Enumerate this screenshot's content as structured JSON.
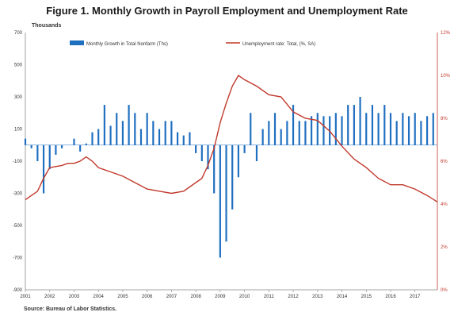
{
  "page": {
    "title": "Figure 1. Monthly Growth in Payroll Employment and Unemployment Rate",
    "y_unit": "Thousands",
    "source": "Source: Bureau of Labor Statistics."
  },
  "chart_data": {
    "type": "bar+line",
    "title": "Figure 1. Monthly Growth in Payroll Employment and Unemployment Rate",
    "colors": {
      "bars": "#1f6fc0",
      "line": "#c0392b"
    },
    "x_range": [
      2001,
      2017.92
    ],
    "x_ticks": [
      "2001",
      "2002",
      "2003",
      "2004",
      "2005",
      "2006",
      "2007",
      "2008",
      "2009",
      "2010",
      "2011",
      "2012",
      "2013",
      "2014",
      "2015",
      "2016",
      "2017"
    ],
    "y_left": {
      "label": "Thousands",
      "range": [
        -900,
        700
      ],
      "ticks": [
        "700",
        "500",
        "300",
        "100",
        "-100",
        "-300",
        "-500",
        "-700",
        "-900"
      ]
    },
    "y_right": {
      "range": [
        0,
        12
      ],
      "ticks": [
        "12%",
        "10%",
        "8%",
        "6%",
        "4%",
        "2%",
        "0%"
      ]
    },
    "legend": {
      "placement": "top",
      "entries": [
        "Monthly Growth in Total Nonfarm (Ths)",
        "Unemployment rate: Total, (%, SA)"
      ]
    },
    "series": [
      {
        "name": "Monthly Growth in Total Nonfarm (Ths)",
        "kind": "bar",
        "points": [
          [
            2001.0,
            40
          ],
          [
            2001.25,
            -20
          ],
          [
            2001.5,
            -100
          ],
          [
            2001.75,
            -300
          ],
          [
            2002.0,
            -150
          ],
          [
            2002.25,
            -60
          ],
          [
            2002.5,
            -20
          ],
          [
            2003.0,
            40
          ],
          [
            2003.25,
            -40
          ],
          [
            2003.5,
            10
          ],
          [
            2003.75,
            80
          ],
          [
            2004.0,
            100
          ],
          [
            2004.25,
            250
          ],
          [
            2004.5,
            120
          ],
          [
            2004.75,
            200
          ],
          [
            2005.0,
            150
          ],
          [
            2005.25,
            250
          ],
          [
            2005.5,
            200
          ],
          [
            2005.75,
            100
          ],
          [
            2006.0,
            200
          ],
          [
            2006.25,
            150
          ],
          [
            2006.5,
            100
          ],
          [
            2006.75,
            150
          ],
          [
            2007.0,
            150
          ],
          [
            2007.25,
            80
          ],
          [
            2007.5,
            60
          ],
          [
            2007.75,
            80
          ],
          [
            2008.0,
            -50
          ],
          [
            2008.25,
            -100
          ],
          [
            2008.5,
            -150
          ],
          [
            2008.75,
            -300
          ],
          [
            2009.0,
            -700
          ],
          [
            2009.25,
            -600
          ],
          [
            2009.5,
            -400
          ],
          [
            2009.75,
            -200
          ],
          [
            2010.0,
            -50
          ],
          [
            2010.25,
            200
          ],
          [
            2010.5,
            -100
          ],
          [
            2010.75,
            100
          ],
          [
            2011.0,
            150
          ],
          [
            2011.25,
            200
          ],
          [
            2011.5,
            100
          ],
          [
            2011.75,
            150
          ],
          [
            2012.0,
            250
          ],
          [
            2012.25,
            150
          ],
          [
            2012.5,
            150
          ],
          [
            2012.75,
            180
          ],
          [
            2013.0,
            200
          ],
          [
            2013.25,
            180
          ],
          [
            2013.5,
            180
          ],
          [
            2013.75,
            200
          ],
          [
            2014.0,
            180
          ],
          [
            2014.25,
            250
          ],
          [
            2014.5,
            250
          ],
          [
            2014.75,
            300
          ],
          [
            2015.0,
            200
          ],
          [
            2015.25,
            250
          ],
          [
            2015.5,
            200
          ],
          [
            2015.75,
            250
          ],
          [
            2016.0,
            200
          ],
          [
            2016.25,
            150
          ],
          [
            2016.5,
            200
          ],
          [
            2016.75,
            180
          ],
          [
            2017.0,
            200
          ],
          [
            2017.25,
            150
          ],
          [
            2017.5,
            180
          ],
          [
            2017.75,
            200
          ]
        ]
      },
      {
        "name": "Unemployment rate: Total, (%, SA)",
        "kind": "line",
        "points": [
          [
            2001.0,
            4.2
          ],
          [
            2001.25,
            4.4
          ],
          [
            2001.5,
            4.6
          ],
          [
            2001.75,
            5.2
          ],
          [
            2002.0,
            5.7
          ],
          [
            2002.5,
            5.8
          ],
          [
            2002.75,
            5.9
          ],
          [
            2003.0,
            5.9
          ],
          [
            2003.25,
            6.0
          ],
          [
            2003.5,
            6.2
          ],
          [
            2003.75,
            6.0
          ],
          [
            2004.0,
            5.7
          ],
          [
            2004.5,
            5.5
          ],
          [
            2005.0,
            5.3
          ],
          [
            2005.5,
            5.0
          ],
          [
            2006.0,
            4.7
          ],
          [
            2006.5,
            4.6
          ],
          [
            2007.0,
            4.5
          ],
          [
            2007.5,
            4.6
          ],
          [
            2008.0,
            5.0
          ],
          [
            2008.25,
            5.2
          ],
          [
            2008.5,
            5.8
          ],
          [
            2008.75,
            6.6
          ],
          [
            2009.0,
            7.8
          ],
          [
            2009.25,
            8.7
          ],
          [
            2009.5,
            9.5
          ],
          [
            2009.75,
            10.0
          ],
          [
            2010.0,
            9.8
          ],
          [
            2010.5,
            9.5
          ],
          [
            2011.0,
            9.1
          ],
          [
            2011.5,
            9.0
          ],
          [
            2012.0,
            8.3
          ],
          [
            2012.5,
            8.0
          ],
          [
            2013.0,
            7.9
          ],
          [
            2013.5,
            7.4
          ],
          [
            2014.0,
            6.7
          ],
          [
            2014.5,
            6.1
          ],
          [
            2015.0,
            5.7
          ],
          [
            2015.5,
            5.2
          ],
          [
            2016.0,
            4.9
          ],
          [
            2016.5,
            4.9
          ],
          [
            2017.0,
            4.7
          ],
          [
            2017.5,
            4.4
          ],
          [
            2017.92,
            4.1
          ]
        ]
      }
    ]
  }
}
